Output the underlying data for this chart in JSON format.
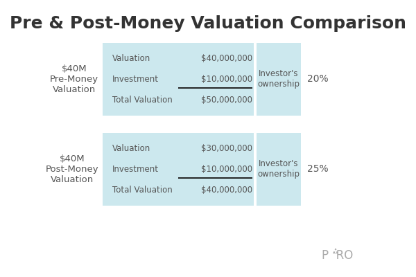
{
  "title": "Pre & Post-Money Valuation Comparison",
  "title_fontsize": 18,
  "bg_color": "#ffffff",
  "box_color": "#cce8ee",
  "text_color_dark": "#555555",
  "text_color_light": "#888888",
  "pre_label": "$40M\nPre-Money\nValuation",
  "pre_rows": [
    {
      "label": "Valuation",
      "value": "$40,000,000"
    },
    {
      "label": "Investment",
      "value": "$10,000,000"
    },
    {
      "label": "Total Valuation",
      "value": "$50,000,000"
    }
  ],
  "pre_ownership_label": "Investor's\nownership",
  "pre_ownership_pct": "20%",
  "post_label": "$40M\nPost-Money\nValuation",
  "post_rows": [
    {
      "label": "Valuation",
      "value": "$30,000,000"
    },
    {
      "label": "Investment",
      "value": "$10,000,000"
    },
    {
      "label": "Total Valuation",
      "value": "$40,000,000"
    }
  ],
  "post_ownership_label": "Investor's\nownership",
  "post_ownership_pct": "25%",
  "paro_text": "P  RO",
  "watermark_color": "#aaaaaa"
}
